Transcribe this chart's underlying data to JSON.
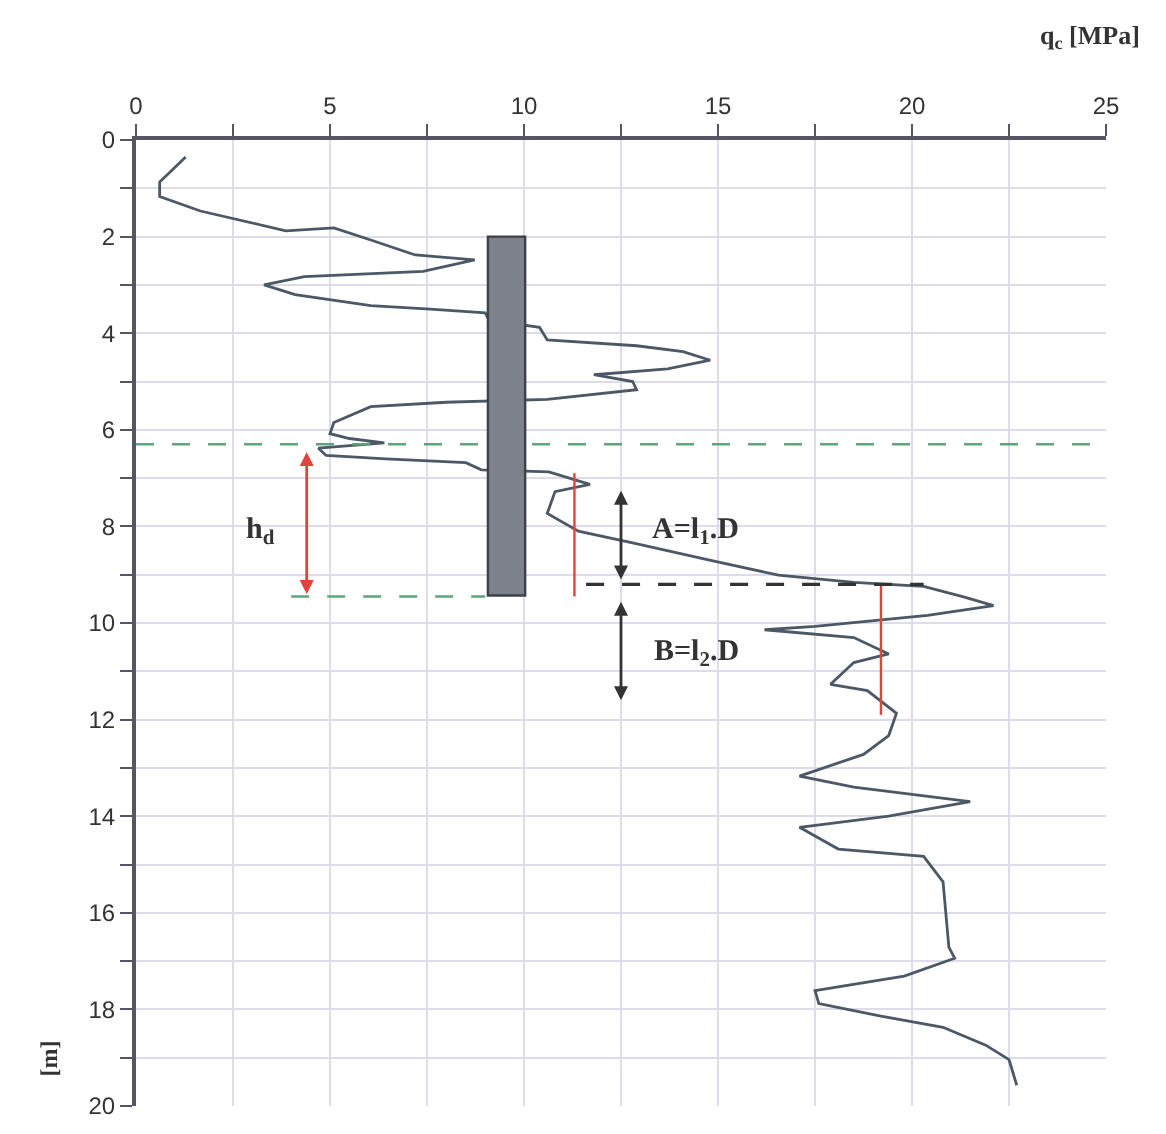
{
  "chart_data": {
    "type": "line",
    "xlabel": "q$_{c}$ [MPa]",
    "ylabel": "[m]",
    "series": [
      {
        "color": "#4d5866",
        "x": [
          1.28,
          0.61,
          0.61,
          1.66,
          3.86,
          5.1,
          6.05,
          7.2,
          8.73,
          7.4,
          4.34,
          3.3,
          4.1,
          6.05,
          7.58,
          9.0,
          9.1,
          10.4,
          10.6,
          12.9,
          14.1,
          14.8,
          13.7,
          11.8,
          12.8,
          12.9,
          10.6,
          8.0,
          6.05,
          5.1,
          5.0,
          5.5,
          6.4,
          4.7,
          4.9,
          6.44,
          8.5,
          8.9,
          10.64,
          11.7,
          10.8,
          10.6,
          11.4,
          12.74,
          14.84,
          16.56,
          18.5,
          20.3,
          21.33,
          22.1,
          20.4,
          17.5,
          16.2,
          18.5,
          19.4,
          18.5,
          17.9,
          18.85,
          19.6,
          19.4,
          18.75,
          17.1,
          18.5,
          21.5,
          19.4,
          17.1,
          18.1,
          20.3,
          20.8,
          20.95,
          21.1,
          19.8,
          17.5,
          17.6,
          19.2,
          20.8,
          21.9,
          22.5,
          22.7
        ],
        "values": [
          0.35,
          0.87,
          1.17,
          1.47,
          1.88,
          1.82,
          2.07,
          2.38,
          2.48,
          2.72,
          2.83,
          3.0,
          3.2,
          3.43,
          3.5,
          3.58,
          3.73,
          3.88,
          4.14,
          4.26,
          4.38,
          4.56,
          4.74,
          4.86,
          5.0,
          5.17,
          5.37,
          5.43,
          5.52,
          5.85,
          6.08,
          6.18,
          6.27,
          6.38,
          6.53,
          6.6,
          6.68,
          6.83,
          6.87,
          7.13,
          7.28,
          7.73,
          8.1,
          8.33,
          8.71,
          9.01,
          9.16,
          9.24,
          9.46,
          9.64,
          9.84,
          10.07,
          10.14,
          10.3,
          10.64,
          10.82,
          11.27,
          11.4,
          11.87,
          12.33,
          12.72,
          13.17,
          13.4,
          13.7,
          14.0,
          14.23,
          14.68,
          14.83,
          15.36,
          16.71,
          16.94,
          17.31,
          17.61,
          17.88,
          18.14,
          18.37,
          18.74,
          19.04,
          19.57
        ]
      }
    ],
    "xlim": [
      0,
      25
    ],
    "xticks": [
      0,
      {
        "value": 2.5,
        "label": null
      },
      5,
      {
        "value": 7.5,
        "label": null
      },
      10,
      {
        "value": 12.5,
        "label": null
      },
      15,
      {
        "value": 17.5,
        "label": null
      },
      20,
      {
        "value": 22.5,
        "label": null
      },
      25
    ],
    "ylim": [
      20,
      0
    ],
    "yticks": [
      0,
      {
        "value": 1,
        "label": null
      },
      2,
      {
        "value": 3,
        "label": null
      },
      4,
      {
        "value": 5,
        "label": null
      },
      6,
      {
        "value": 7,
        "label": null
      },
      8,
      {
        "value": 9,
        "label": null
      },
      10,
      {
        "value": 11,
        "label": null
      },
      12,
      {
        "value": 13,
        "label": null
      },
      14,
      {
        "value": 15,
        "label": null
      },
      16,
      {
        "value": 17,
        "label": null
      },
      18,
      {
        "value": 19,
        "label": null
      },
      20
    ],
    "grid": true,
    "marker": "none",
    "line_style": "solid",
    "ref_lines": [
      {
        "axis": "y",
        "value": 6.3,
        "color": "#5fa37a",
        "line_style": "dashed"
      }
    ],
    "annotations": [
      "h$_{d}$",
      "A=l$_{1}$.D",
      "B=l$_{2}$.D"
    ]
  }
}
